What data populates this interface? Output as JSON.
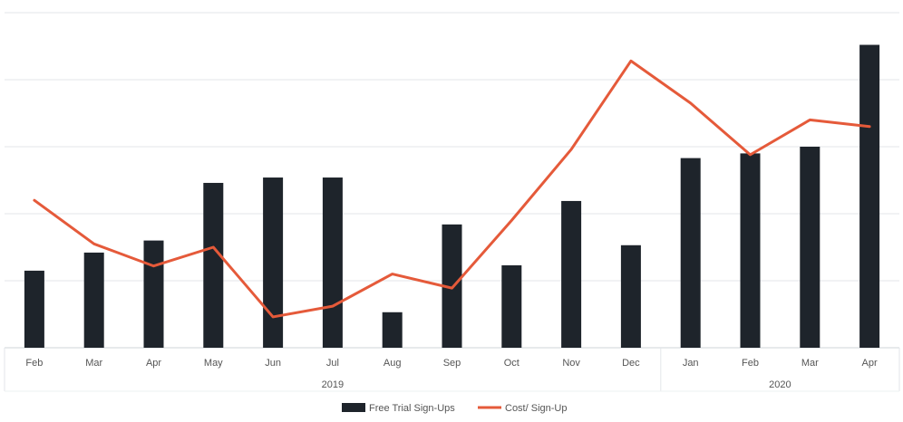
{
  "chart_data": {
    "type": "bar",
    "categories": [
      "Feb",
      "Mar",
      "Apr",
      "May",
      "Jun",
      "Jul",
      "Aug",
      "Sep",
      "Oct",
      "Nov",
      "Dec",
      "Jan",
      "Feb",
      "Mar",
      "Apr"
    ],
    "year_groups": [
      {
        "label": "2019",
        "start": 0,
        "end": 10
      },
      {
        "label": "2020",
        "start": 11,
        "end": 14
      }
    ],
    "series": [
      {
        "name": "Free Trial Sign-Ups",
        "type": "bar",
        "color": "#1e242b",
        "values": [
          11.5,
          14.2,
          16.0,
          24.6,
          25.4,
          25.4,
          5.3,
          18.4,
          12.3,
          21.9,
          15.3,
          28.3,
          29.0,
          30.0,
          45.2
        ]
      },
      {
        "name": "Cost/ Sign-Up",
        "type": "line",
        "color": "#e55a3a",
        "values": [
          22.0,
          15.5,
          12.2,
          15.0,
          4.6,
          6.2,
          11.0,
          8.9,
          19.0,
          29.6,
          42.8,
          36.5,
          28.8,
          34.0,
          33.0
        ]
      }
    ],
    "ylim": [
      0,
      50
    ],
    "y_gridlines": [
      0,
      10,
      20,
      30,
      40,
      50
    ],
    "y_tick_labels_shown": false,
    "grid": true,
    "legend": "bottom-center"
  }
}
